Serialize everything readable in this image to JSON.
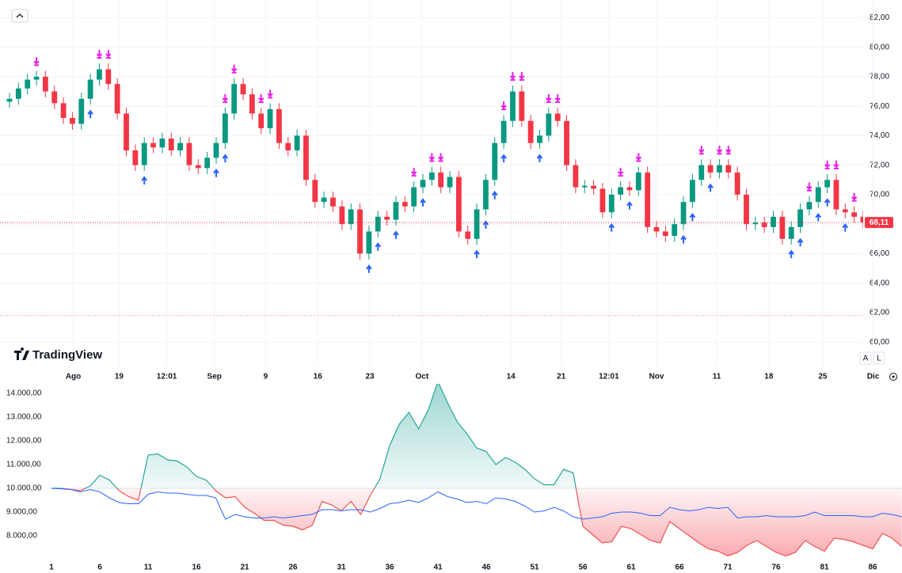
{
  "chart_data": [
    {
      "type": "candlestick",
      "open": [
        76.3,
        76.5,
        77.2,
        77.8,
        78.0,
        77.0,
        76.2,
        75.2,
        74.8,
        76.5,
        77.8,
        78.5,
        77.5,
        75.5,
        73.0,
        72.0,
        73.5,
        73.2,
        73.8,
        73.0,
        73.5,
        72.0,
        71.8,
        72.5,
        73.5,
        75.5,
        77.5,
        76.8,
        75.5,
        74.5,
        75.8,
        73.5,
        73.0,
        74.0,
        71.0,
        69.5,
        69.8,
        69.2,
        68.0,
        69.0,
        66.0,
        67.5,
        68.5,
        68.3,
        69.5,
        69.2,
        70.5,
        71.0,
        71.5,
        70.5,
        71.2,
        67.5,
        67.0,
        69.0,
        71.0,
        73.5,
        75.0,
        77.0,
        75.0,
        73.5,
        74.0,
        75.5,
        75.0,
        72.0,
        70.5,
        70.6,
        70.4,
        68.8,
        70.0,
        70.5,
        70.3,
        71.5,
        67.8,
        67.5,
        67.2,
        68.0,
        69.5,
        71.0,
        72.0,
        71.5,
        72.0,
        71.5,
        70.0,
        68.0,
        68.1,
        67.8,
        68.5,
        67.0,
        67.8,
        69.0,
        69.5,
        70.5,
        71.0,
        69.0,
        68.8,
        68.5
      ],
      "high": [
        76.9,
        77.6,
        78.2,
        78.4,
        78.4,
        77.4,
        76.6,
        75.6,
        76.9,
        78.2,
        78.9,
        78.9,
        77.9,
        75.9,
        73.4,
        73.9,
        73.9,
        74.2,
        74.2,
        73.9,
        73.9,
        72.4,
        72.9,
        73.9,
        75.9,
        77.9,
        77.9,
        77.2,
        75.9,
        76.2,
        76.2,
        73.9,
        74.4,
        74.4,
        71.4,
        70.2,
        70.2,
        69.6,
        69.4,
        69.4,
        67.9,
        68.9,
        68.9,
        69.9,
        69.9,
        70.9,
        71.4,
        71.9,
        71.9,
        71.6,
        71.6,
        67.9,
        69.4,
        71.4,
        73.9,
        75.4,
        77.4,
        77.4,
        75.4,
        74.4,
        75.9,
        75.9,
        75.4,
        72.4,
        71.0,
        71.0,
        70.8,
        70.4,
        70.9,
        70.9,
        71.9,
        71.9,
        68.2,
        67.9,
        68.4,
        69.9,
        71.4,
        72.4,
        72.4,
        72.4,
        72.4,
        71.9,
        70.4,
        68.5,
        68.5,
        68.9,
        68.9,
        68.2,
        69.4,
        69.9,
        70.9,
        71.4,
        71.4,
        69.4,
        69.2,
        68.9
      ],
      "low": [
        75.9,
        76.1,
        76.8,
        77.4,
        76.6,
        75.8,
        74.8,
        74.4,
        74.4,
        76.1,
        77.4,
        77.1,
        75.1,
        72.6,
        71.6,
        71.6,
        72.8,
        72.8,
        72.6,
        72.6,
        71.6,
        71.4,
        71.4,
        72.1,
        73.1,
        75.1,
        76.4,
        75.1,
        74.1,
        74.1,
        73.1,
        72.6,
        72.6,
        70.6,
        69.1,
        69.1,
        68.8,
        67.6,
        67.6,
        65.6,
        65.6,
        67.1,
        67.9,
        67.9,
        68.8,
        68.8,
        70.1,
        70.6,
        70.1,
        70.1,
        67.1,
        66.6,
        66.6,
        68.6,
        70.6,
        73.1,
        74.6,
        74.6,
        73.1,
        73.1,
        73.6,
        74.6,
        71.6,
        70.1,
        70.1,
        70.0,
        68.4,
        68.4,
        69.6,
        69.9,
        69.9,
        67.4,
        67.1,
        66.8,
        66.8,
        67.6,
        69.1,
        70.6,
        71.1,
        71.1,
        71.1,
        69.6,
        67.6,
        67.6,
        67.4,
        67.4,
        66.6,
        66.6,
        67.4,
        68.6,
        69.1,
        70.1,
        68.6,
        68.4,
        68.1,
        67.71
      ],
      "close": [
        76.5,
        77.2,
        77.8,
        78.0,
        77.0,
        76.2,
        75.2,
        74.8,
        76.5,
        77.8,
        78.5,
        77.5,
        75.5,
        73.0,
        72.0,
        73.5,
        73.2,
        73.8,
        73.0,
        73.5,
        72.0,
        71.8,
        72.5,
        73.5,
        75.5,
        77.5,
        76.8,
        75.5,
        74.5,
        75.8,
        73.5,
        73.0,
        74.0,
        71.0,
        69.5,
        69.8,
        69.2,
        68.0,
        69.0,
        66.0,
        67.5,
        68.5,
        68.3,
        69.5,
        69.2,
        70.5,
        71.0,
        71.5,
        70.5,
        71.2,
        67.5,
        67.0,
        69.0,
        71.0,
        73.5,
        75.0,
        77.0,
        75.0,
        73.5,
        74.0,
        75.5,
        75.0,
        72.0,
        70.5,
        70.6,
        70.4,
        68.8,
        70.0,
        70.5,
        70.3,
        71.5,
        67.8,
        67.5,
        67.2,
        68.0,
        69.5,
        71.0,
        72.0,
        71.5,
        72.0,
        71.5,
        70.0,
        68.0,
        68.1,
        67.8,
        68.5,
        67.0,
        67.8,
        69.0,
        69.5,
        70.5,
        71.0,
        69.0,
        68.8,
        68.5,
        68.11
      ],
      "up_color": "#089981",
      "down_color": "#f23645",
      "sell_signals": [
        3,
        10,
        11,
        24,
        25,
        28,
        29,
        45,
        47,
        48,
        55,
        56,
        57,
        60,
        61,
        68,
        70,
        77,
        79,
        80,
        89,
        91,
        92,
        94
      ],
      "buy_signals": [
        9,
        15,
        23,
        24,
        40,
        41,
        43,
        46,
        52,
        53,
        54,
        55,
        59,
        67,
        69,
        75,
        76,
        78,
        87,
        88,
        90,
        91,
        93
      ],
      "sell_color": "#e91ee9",
      "buy_color": "#2962ff",
      "xlim": [
        0,
        95
      ],
      "xticks": [
        {
          "value": 7.1,
          "label": "Ago"
        },
        {
          "value": 12.2,
          "label": "19"
        },
        {
          "value": 17.5,
          "label": "12:01"
        },
        {
          "value": 22.8,
          "label": "Sep"
        },
        {
          "value": 28.5,
          "label": "9"
        },
        {
          "value": 34.3,
          "label": "16"
        },
        {
          "value": 40.1,
          "label": "23"
        },
        {
          "value": 45.9,
          "label": "Oct"
        },
        {
          "value": 55.8,
          "label": "14"
        },
        {
          "value": 61.4,
          "label": "21"
        },
        {
          "value": 66.7,
          "label": "12:01"
        },
        {
          "value": 72.0,
          "label": "Nov"
        },
        {
          "value": 78.7,
          "label": "11"
        },
        {
          "value": 84.5,
          "label": "18"
        },
        {
          "value": 90.5,
          "label": "25"
        },
        {
          "value": 96.1,
          "label": "Dic"
        }
      ],
      "ylim": [
        58.4,
        83.2
      ],
      "yticks": [
        {
          "value": 60,
          "label": "60,00"
        },
        {
          "value": 62,
          "label": "62,00"
        },
        {
          "value": 64,
          "label": "64,00"
        },
        {
          "value": 66,
          "label": "66,00"
        },
        {
          "value": 68,
          "label": "68,00"
        },
        {
          "value": 70,
          "label": "70,00"
        },
        {
          "value": 72,
          "label": "72,00"
        },
        {
          "value": 74,
          "label": "74,00"
        },
        {
          "value": 76,
          "label": "76,00"
        },
        {
          "value": 78,
          "label": "78,00"
        },
        {
          "value": 80,
          "label": "80,00"
        },
        {
          "value": 82,
          "label": "82,00"
        }
      ],
      "last_price": {
        "value": 68.11,
        "label": "68,11"
      },
      "lower_line": 61.8,
      "grid": true
    },
    {
      "type": "area",
      "x": [
        1,
        2,
        3,
        4,
        5,
        6,
        7,
        8,
        9,
        10,
        11,
        12,
        13,
        14,
        15,
        16,
        17,
        18,
        19,
        20,
        21,
        22,
        23,
        24,
        25,
        26,
        27,
        28,
        29,
        30,
        31,
        32,
        33,
        34,
        35,
        36,
        37,
        38,
        39,
        40,
        41,
        42,
        43,
        44,
        45,
        46,
        47,
        48,
        49,
        50,
        51,
        52,
        53,
        54,
        55,
        56,
        57,
        58,
        59,
        60,
        61,
        62,
        63,
        64,
        65,
        66,
        67,
        68,
        69,
        70,
        71,
        72,
        73,
        74,
        75,
        76,
        77,
        78,
        79,
        80,
        81,
        82,
        83,
        84,
        85,
        86,
        87,
        88,
        89
      ],
      "baseline": 10000,
      "series": [
        {
          "color": "#26a69a",
          "below_color": "#ef5350",
          "values": [
            10000,
            10000,
            9950,
            9900,
            10100,
            10550,
            10350,
            9900,
            9650,
            9500,
            11400,
            11450,
            11200,
            11150,
            10900,
            10500,
            10350,
            9900,
            9600,
            9650,
            9200,
            8950,
            8650,
            8650,
            8450,
            8400,
            8250,
            8450,
            9450,
            9300,
            9050,
            9450,
            8900,
            9700,
            10400,
            11800,
            12700,
            13200,
            12500,
            13300,
            14500,
            13600,
            12800,
            12300,
            11700,
            11550,
            11000,
            11300,
            11100,
            10800,
            10400,
            10150,
            10150,
            10800,
            10650,
            8400,
            8050,
            7700,
            7750,
            8400,
            8300,
            8050,
            7800,
            7700,
            8600,
            8300,
            8000,
            7700,
            7450,
            7350,
            7150,
            7300,
            7600,
            7800,
            7550,
            7300,
            7150,
            7300,
            7800,
            7550,
            7350,
            7900,
            7850,
            7750,
            7600,
            7450,
            8100,
            7900,
            7550
          ]
        },
        {
          "color": "#2962ff",
          "values": [
            10000,
            9980,
            9950,
            9850,
            9950,
            9850,
            9600,
            9400,
            9350,
            9350,
            9750,
            9850,
            9800,
            9800,
            9750,
            9700,
            9700,
            9600,
            8700,
            8900,
            8800,
            8750,
            8750,
            8800,
            8750,
            8800,
            8850,
            8900,
            9100,
            9100,
            9050,
            9100,
            9100,
            9000,
            9150,
            9350,
            9400,
            9500,
            9400,
            9600,
            9850,
            9650,
            9550,
            9400,
            9450,
            9350,
            9600,
            9550,
            9450,
            9250,
            9000,
            9050,
            9200,
            9050,
            8800,
            8700,
            8750,
            8800,
            8950,
            9000,
            9000,
            8950,
            8850,
            8850,
            9200,
            9100,
            9050,
            9100,
            9200,
            9150,
            9200,
            8750,
            8800,
            8800,
            8850,
            8800,
            8800,
            8800,
            8850,
            9000,
            8850,
            8850,
            8850,
            8850,
            8800,
            8800,
            8950,
            8900,
            8800
          ]
        }
      ],
      "xlim": [
        1,
        89
      ],
      "xticks": [
        1,
        6,
        11,
        16,
        21,
        26,
        31,
        36,
        41,
        46,
        51,
        56,
        61,
        66,
        71,
        76,
        81,
        86
      ],
      "ylim": [
        7000,
        14400
      ],
      "yticks": [
        {
          "value": 14000,
          "label": "14.000,00"
        },
        {
          "value": 13000,
          "label": "13.000,00"
        },
        {
          "value": 12000,
          "label": "12.000,00"
        },
        {
          "value": 11000,
          "label": "11.000,00"
        },
        {
          "value": 10000,
          "label": "10.000,00"
        },
        {
          "value": 9000,
          "label": "9.000,00"
        },
        {
          "value": 8000,
          "label": "8.000,00"
        }
      ]
    }
  ],
  "ui": {
    "logo": "TradingView",
    "auto": "A",
    "log": "L"
  }
}
